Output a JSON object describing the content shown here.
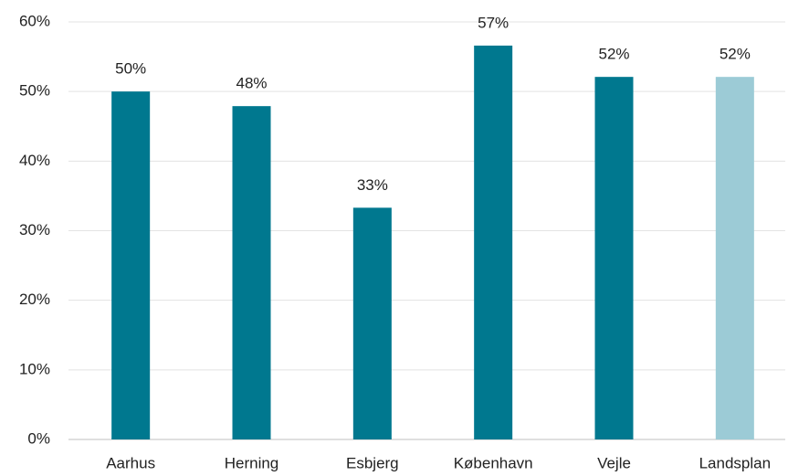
{
  "chart_data": {
    "type": "bar",
    "categories": [
      "Aarhus",
      "Herning",
      "Esbjerg",
      "København",
      "Vejle",
      "Landsplan"
    ],
    "values": [
      50,
      47.9,
      33.3,
      56.6,
      52.1,
      52.1
    ],
    "value_labels": [
      "50%",
      "48%",
      "33%",
      "57%",
      "52%",
      "52%"
    ],
    "colors": [
      "#00788f",
      "#00788f",
      "#00788f",
      "#00788f",
      "#00788f",
      "#9ccbd6"
    ],
    "ylim": [
      0,
      60
    ],
    "yticks": [
      {
        "value": 0,
        "label": "0%"
      },
      {
        "value": 10,
        "label": "10%"
      },
      {
        "value": 20,
        "label": "20%"
      },
      {
        "value": 30,
        "label": "30%"
      },
      {
        "value": 40,
        "label": "40%"
      },
      {
        "value": 50,
        "label": "50%"
      },
      {
        "value": 60,
        "label": "60%"
      }
    ],
    "grid": true
  }
}
